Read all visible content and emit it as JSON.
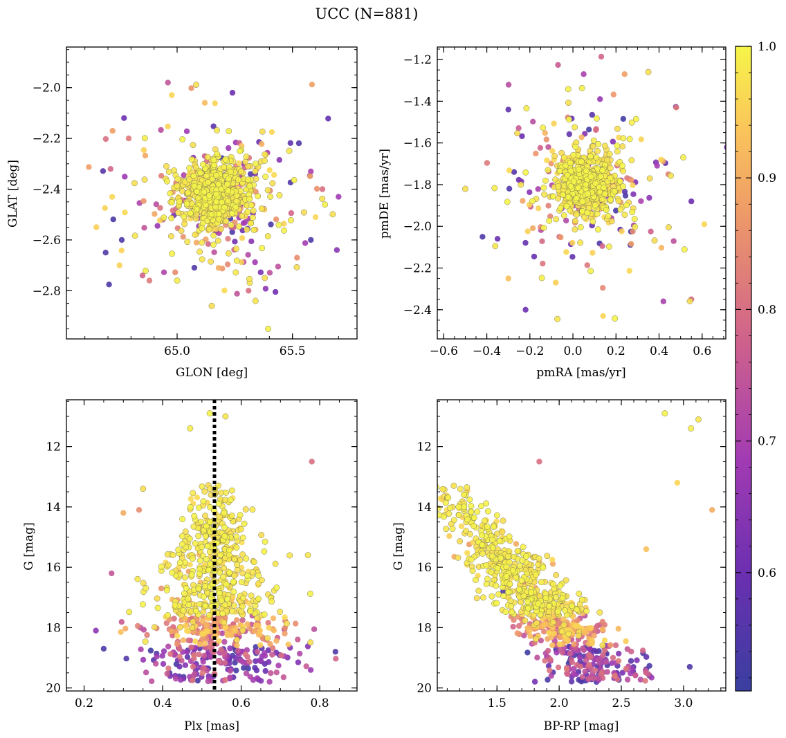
{
  "figure_title": "UCC (N=881)",
  "colormap": "plasma",
  "colorbar": {
    "range": [
      0.51,
      1.0
    ],
    "ticks": [
      0.6,
      0.7,
      0.8,
      0.9,
      1.0
    ],
    "tick_labels": [
      "0.6",
      "0.7",
      "0.8",
      "0.9",
      "1.0"
    ]
  },
  "chart_data": [
    {
      "id": "glon-glat",
      "type": "scatter",
      "xlabel": "GLON [deg]",
      "ylabel": "GLAT [deg]",
      "xlim": [
        64.52,
        65.78
      ],
      "ylim": [
        -2.99,
        -1.84
      ],
      "yinvert": false,
      "xticks": [
        65.0,
        65.5
      ],
      "xtick_labels": [
        "65.0",
        "65.5"
      ],
      "yticks": [
        -2.0,
        -2.2,
        -2.4,
        -2.6,
        -2.8
      ],
      "ytick_labels": [
        "−2.0",
        "−2.2",
        "−2.4",
        "−2.6",
        "−2.8"
      ],
      "x_minor": 0.1,
      "y_minor": 0.05,
      "points": [
        [
          65.17,
          -2.42,
          1.0
        ],
        [
          65.21,
          -2.38,
          0.98
        ],
        [
          65.12,
          -2.45,
          0.99
        ],
        [
          65.25,
          -2.5,
          0.95
        ],
        [
          65.05,
          -2.35,
          0.97
        ],
        [
          64.96,
          -1.98,
          0.75
        ],
        [
          65.24,
          -2.02,
          0.6
        ],
        [
          64.77,
          -2.12,
          0.6
        ],
        [
          64.72,
          -2.17,
          0.88
        ],
        [
          64.79,
          -2.2,
          0.82
        ],
        [
          65.15,
          -2.86,
          0.97
        ],
        [
          65.31,
          -2.8,
          0.8
        ],
        [
          65.34,
          -2.84,
          0.98
        ],
        [
          64.65,
          -2.55,
          0.95
        ],
        [
          64.69,
          -2.65,
          0.55
        ],
        [
          65.7,
          -2.43,
          0.68
        ],
        [
          65.58,
          -2.6,
          0.55
        ],
        [
          65.6,
          -2.51,
          0.96
        ],
        [
          65.52,
          -2.67,
          0.85
        ],
        [
          65.0,
          -2.76,
          0.99
        ],
        [
          64.88,
          -2.76,
          0.82
        ],
        [
          64.85,
          -2.74,
          0.78
        ],
        [
          65.38,
          -2.75,
          0.97
        ],
        [
          65.18,
          -2.71,
          0.9
        ],
        [
          64.75,
          -2.7,
          0.95
        ],
        [
          64.76,
          -2.6,
          0.55
        ],
        [
          65.58,
          -2.33,
          0.7
        ],
        [
          65.63,
          -2.4,
          0.8
        ],
        [
          65.12,
          -2.06,
          0.92
        ],
        [
          65.28,
          -2.23,
          0.94
        ]
      ],
      "n_total": 881
    },
    {
      "id": "pmra-pmde",
      "type": "scatter",
      "xlabel": "pmRA [mas/yr]",
      "ylabel": "pmDE [mas/yr]",
      "xlim": [
        -0.63,
        0.71
      ],
      "ylim": [
        -2.54,
        -1.14
      ],
      "yinvert": false,
      "xticks": [
        -0.6,
        -0.4,
        -0.2,
        0.0,
        0.2,
        0.4,
        0.6
      ],
      "xtick_labels": [
        "−0.6",
        "−0.4",
        "−0.2",
        "0.0",
        "0.2",
        "0.4",
        "0.6"
      ],
      "yticks": [
        -1.2,
        -1.4,
        -1.6,
        -1.8,
        -2.0,
        -2.2,
        -2.4
      ],
      "ytick_labels": [
        "−1.2",
        "−1.4",
        "−1.6",
        "−1.8",
        "−2.0",
        "−2.2",
        "−2.4"
      ],
      "x_minor": 0.05,
      "y_minor": 0.05,
      "points": [
        [
          0.06,
          -1.8,
          1.0
        ],
        [
          0.1,
          -1.75,
          0.98
        ],
        [
          0.02,
          -1.85,
          0.99
        ],
        [
          0.12,
          -1.9,
          0.95
        ],
        [
          -0.5,
          -1.82,
          0.97
        ],
        [
          -0.42,
          -2.05,
          0.55
        ],
        [
          -0.35,
          -2.06,
          0.6
        ],
        [
          0.35,
          -1.26,
          0.97
        ],
        [
          0.24,
          -1.27,
          0.88
        ],
        [
          0.05,
          -1.27,
          0.7
        ],
        [
          0.61,
          -1.99,
          0.96
        ],
        [
          0.55,
          -1.88,
          0.6
        ],
        [
          0.55,
          -2.35,
          0.8
        ],
        [
          0.14,
          -2.43,
          0.96
        ],
        [
          -0.22,
          -2.4,
          0.6
        ],
        [
          -0.3,
          -1.44,
          0.58
        ],
        [
          0.48,
          -1.43,
          0.82
        ],
        [
          -0.3,
          -2.25,
          0.93
        ],
        [
          0.42,
          -2.36,
          0.7
        ],
        [
          -0.08,
          -2.27,
          0.95
        ]
      ],
      "n_total": 881
    },
    {
      "id": "plx-g",
      "type": "scatter",
      "xlabel": "Plx [mas]",
      "ylabel": "G [mag]",
      "xlim": [
        0.155,
        0.895
      ],
      "ylim": [
        10.45,
        20.1
      ],
      "yinvert": true,
      "xticks": [
        0.2,
        0.4,
        0.6,
        0.8
      ],
      "xtick_labels": [
        "0.2",
        "0.4",
        "0.6",
        "0.8"
      ],
      "yticks": [
        12,
        14,
        16,
        18,
        20
      ],
      "ytick_labels": [
        "12",
        "14",
        "16",
        "18",
        "20"
      ],
      "x_minor": 0.05,
      "y_minor": 0.5,
      "vline": 0.532,
      "points": [
        [
          0.52,
          10.9,
          1.0
        ],
        [
          0.56,
          11.0,
          0.98
        ],
        [
          0.47,
          11.4,
          0.99
        ],
        [
          0.78,
          12.5,
          0.8
        ],
        [
          0.35,
          13.4,
          0.97
        ],
        [
          0.3,
          14.2,
          0.9
        ],
        [
          0.34,
          14.1,
          0.85
        ],
        [
          0.77,
          15.6,
          0.98
        ],
        [
          0.27,
          16.2,
          0.75
        ],
        [
          0.23,
          18.1,
          0.65
        ],
        [
          0.84,
          18.8,
          0.55
        ],
        [
          0.25,
          18.7,
          0.55
        ]
      ],
      "n_total": 881
    },
    {
      "id": "bprp-g",
      "type": "scatter",
      "xlabel": "BP-RP [mag]",
      "ylabel": "G [mag]",
      "xlim": [
        1.02,
        3.34
      ],
      "ylim": [
        10.45,
        20.1
      ],
      "yinvert": true,
      "xticks": [
        1.5,
        2.0,
        2.5,
        3.0
      ],
      "xtick_labels": [
        "1.5",
        "2.0",
        "2.5",
        "3.0"
      ],
      "yticks": [
        12,
        14,
        16,
        18,
        20
      ],
      "ytick_labels": [
        "12",
        "14",
        "16",
        "18",
        "20"
      ],
      "x_minor": 0.1,
      "y_minor": 0.5,
      "points": [
        [
          2.85,
          10.9,
          1.0
        ],
        [
          3.12,
          11.1,
          0.98
        ],
        [
          3.06,
          11.4,
          0.99
        ],
        [
          3.23,
          14.1,
          0.9
        ],
        [
          1.84,
          12.5,
          0.8
        ],
        [
          1.1,
          13.7,
          0.97
        ],
        [
          2.95,
          13.2,
          0.96
        ],
        [
          2.7,
          15.4,
          0.93
        ],
        [
          3.05,
          19.3,
          0.55
        ],
        [
          2.3,
          19.8,
          0.55
        ],
        [
          1.5,
          15.9,
          0.55
        ],
        [
          1.55,
          16.8,
          0.55
        ]
      ],
      "n_total": 881
    }
  ]
}
